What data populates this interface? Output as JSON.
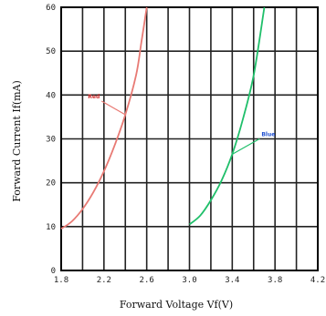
{
  "chart_data": {
    "type": "line",
    "xlabel": "Forward Voltage Vf(V)",
    "ylabel": "Forward Current If(mA)",
    "xlim": [
      1.8,
      4.2
    ],
    "ylim": [
      0,
      60
    ],
    "x_ticks": [
      "1.8",
      "2.2",
      "2.6",
      "3.0",
      "3.4",
      "3.8",
      "4.2"
    ],
    "y_ticks": [
      "0",
      "10",
      "20",
      "30",
      "40",
      "50",
      "60"
    ],
    "grid": true,
    "series": [
      {
        "name": "Red",
        "color": "#e87a74",
        "x": [
          1.8,
          1.9,
          2.0,
          2.1,
          2.2,
          2.3,
          2.4,
          2.5,
          2.55,
          2.6
        ],
        "y": [
          9.5,
          11.2,
          14.0,
          17.8,
          22.6,
          28.5,
          35.5,
          44.5,
          52.0,
          60.0
        ]
      },
      {
        "name": "Blue",
        "color": "#1fbf6a",
        "x": [
          3.0,
          3.1,
          3.2,
          3.3,
          3.4,
          3.5,
          3.6,
          3.7
        ],
        "y": [
          10.5,
          12.5,
          16.0,
          20.5,
          26.5,
          34.5,
          44.5,
          60.0
        ]
      }
    ]
  }
}
